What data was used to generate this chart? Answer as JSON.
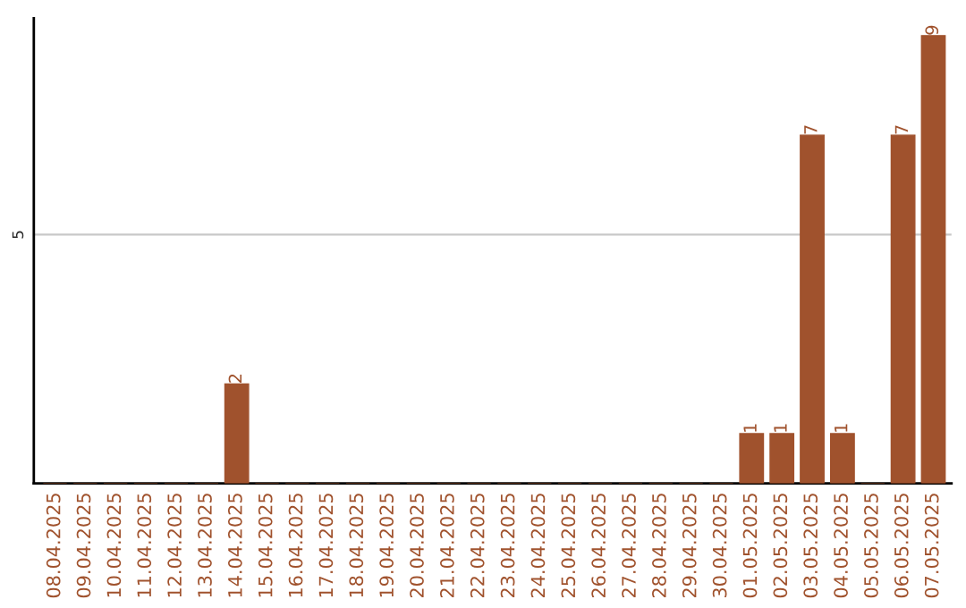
{
  "chart_data": {
    "type": "bar",
    "categories": [
      "08.04.2025",
      "09.04.2025",
      "10.04.2025",
      "11.04.2025",
      "12.04.2025",
      "13.04.2025",
      "14.04.2025",
      "15.04.2025",
      "16.04.2025",
      "17.04.2025",
      "18.04.2025",
      "19.04.2025",
      "20.04.2025",
      "21.04.2025",
      "22.04.2025",
      "23.04.2025",
      "24.04.2025",
      "25.04.2025",
      "26.04.2025",
      "27.04.2025",
      "28.04.2025",
      "29.04.2025",
      "30.04.2025",
      "01.05.2025",
      "02.05.2025",
      "03.05.2025",
      "04.05.2025",
      "05.05.2025",
      "06.05.2025",
      "07.05.2025"
    ],
    "values": [
      0,
      0,
      0,
      0,
      0,
      0,
      2,
      0,
      0,
      0,
      0,
      0,
      0,
      0,
      0,
      0,
      0,
      0,
      0,
      0,
      0,
      0,
      0,
      1,
      1,
      7,
      1,
      0,
      7,
      9
    ],
    "value_labels": [
      null,
      null,
      null,
      null,
      null,
      null,
      "2",
      null,
      null,
      null,
      null,
      null,
      null,
      null,
      null,
      null,
      null,
      null,
      null,
      null,
      null,
      null,
      null,
      "1",
      "1",
      "7",
      "1",
      null,
      "7",
      "9"
    ],
    "color": "#a0522d",
    "ylim": [
      0,
      9.35
    ],
    "yticks": [
      5
    ],
    "grid": "y"
  }
}
